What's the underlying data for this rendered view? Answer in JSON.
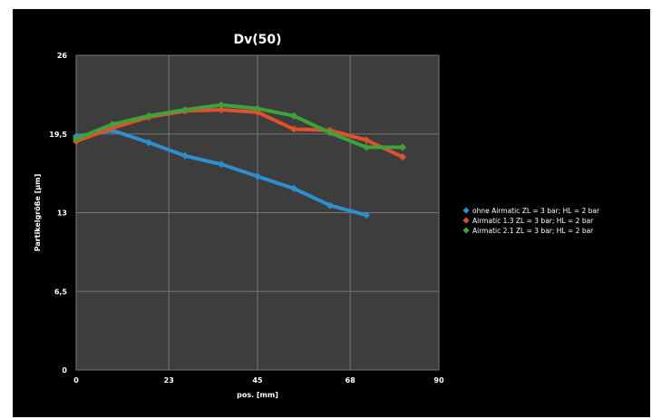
{
  "chart_data": {
    "type": "line",
    "title": "Dv(50)",
    "xlabel": "pos. [mm]",
    "ylabel": "Partikelgröße [µm]",
    "xlim": [
      0,
      90
    ],
    "ylim": [
      0,
      26
    ],
    "xticks": [
      0,
      23,
      45,
      68,
      90
    ],
    "xtick_labels": [
      "0",
      "23",
      "45",
      "68",
      "90"
    ],
    "yticks": [
      0,
      6.5,
      13,
      19.5,
      26
    ],
    "ytick_labels": [
      "0",
      "6,5",
      "13",
      "19,5",
      "26"
    ],
    "grid": true,
    "legend_position": "right",
    "series": [
      {
        "name": "ohne Airmatic ZL = 3 bar; HL = 2 bar",
        "color": "#2e8fd0",
        "marker": "diamond",
        "x": [
          0,
          9,
          18,
          27,
          36,
          45,
          54,
          63,
          72
        ],
        "y": [
          19.3,
          19.8,
          18.8,
          17.7,
          17.0,
          16.0,
          15.0,
          13.6,
          12.8
        ]
      },
      {
        "name": "Airmatic 1.3 ZL = 3 bar; HL = 2 bar",
        "color": "#e0502a",
        "marker": "diamond",
        "x": [
          0,
          9,
          18,
          27,
          36,
          45,
          54,
          63,
          72,
          81
        ],
        "y": [
          18.9,
          20.0,
          20.9,
          21.4,
          21.5,
          21.3,
          19.9,
          19.8,
          19.0,
          17.6
        ]
      },
      {
        "name": "Airmatic 2.1 ZL = 3 bar; HL = 2 bar",
        "color": "#3da33a",
        "marker": "diamond",
        "x": [
          0,
          9,
          18,
          27,
          36,
          45,
          54,
          63,
          72,
          81
        ],
        "y": [
          19.1,
          20.3,
          21.0,
          21.5,
          21.9,
          21.6,
          21.0,
          19.6,
          18.4,
          18.4
        ]
      }
    ]
  }
}
